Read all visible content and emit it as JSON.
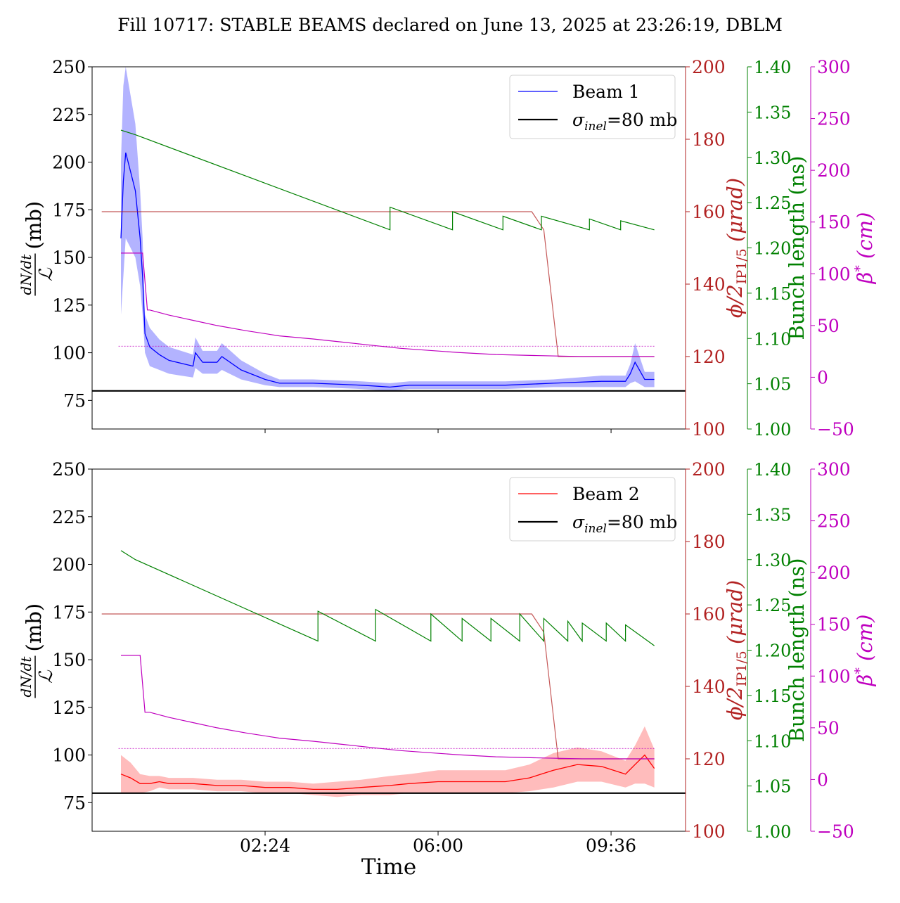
{
  "title": "Fill 10717: STABLE BEAMS declared on June 13, 2025 at 23:26:19, DBLM",
  "colors": {
    "beam1": "#0000ff",
    "beam1_band": "#8080ff",
    "beam2": "#ff0000",
    "beam2_band": "#ff9090",
    "crossing_angle": "#b22222",
    "bunch_length": "#008000",
    "beta_star": "#bf00bf",
    "sigma": "#000000"
  },
  "shared_x": {
    "label": "Time",
    "unit": "hours after 23:26",
    "ticks": [
      {
        "value": 3.0,
        "label": "02:24"
      },
      {
        "value": 6.6,
        "label": "06:00"
      },
      {
        "value": 10.2,
        "label": "09:36"
      }
    ],
    "range": [
      -0.6,
      11.75
    ]
  },
  "axes": {
    "left": {
      "label_fraction": "dN/dt / ℒ",
      "label_unit": "(mb)",
      "range": [
        60,
        250
      ],
      "ticks": [
        "75",
        "100",
        "125",
        "150",
        "175",
        "200",
        "225",
        "250"
      ]
    },
    "right1": {
      "label": "ϕ/2",
      "label_sub": "IP1/5",
      "label_unit": "(μrad)",
      "range": [
        100,
        200
      ],
      "ticks": [
        "100",
        "120",
        "140",
        "160",
        "180",
        "200"
      ]
    },
    "right2": {
      "label": "Bunch length (ns)",
      "range": [
        1.0,
        1.4
      ],
      "ticks": [
        "1.00",
        "1.05",
        "1.10",
        "1.15",
        "1.20",
        "1.25",
        "1.30",
        "1.35",
        "1.40"
      ]
    },
    "right3": {
      "label": "β",
      "label_sup": "*",
      "label_unit": "(cm)",
      "range": [
        -50,
        300
      ],
      "ticks": [
        "−50",
        "0",
        "50",
        "100",
        "150",
        "200",
        "250",
        "300"
      ]
    }
  },
  "chart_data": [
    {
      "type": "line",
      "legend": {
        "position": "top-right",
        "entries": [
          {
            "label": "Beam 1"
          },
          {
            "label_main": "σ",
            "label_sub": "inel",
            "label_rest": "=80 mb"
          }
        ]
      },
      "series": [
        {
          "name": "Beam 1",
          "axis": "left",
          "x": [
            0.0,
            0.05,
            0.1,
            0.2,
            0.3,
            0.4,
            0.45,
            0.5,
            0.6,
            0.8,
            1.0,
            1.5,
            1.55,
            1.7,
            2.0,
            2.1,
            2.5,
            3.0,
            3.3,
            4.0,
            5.0,
            5.6,
            6.0,
            6.6,
            7.0,
            8.0,
            9.0,
            10.0,
            10.5,
            10.6,
            10.7,
            10.9,
            11.1
          ],
          "y": [
            160,
            190,
            205,
            195,
            185,
            160,
            140,
            110,
            103,
            99,
            96,
            93,
            100,
            95,
            95,
            98,
            91,
            86,
            84,
            84,
            83,
            82,
            83,
            83,
            83,
            83,
            84,
            85,
            85,
            89,
            95,
            86,
            86
          ],
          "band_half": [
            40,
            50,
            45,
            40,
            35,
            25,
            20,
            10,
            10,
            8,
            7,
            6,
            8,
            6,
            6,
            7,
            5,
            3,
            2,
            2,
            2,
            2,
            2,
            2,
            2,
            2,
            2,
            3,
            3,
            5,
            10,
            4,
            4
          ]
        },
        {
          "name": "σinel=80 mb",
          "axis": "left",
          "constant": 80
        },
        {
          "name": "crossing angle",
          "axis": "right1",
          "x": [
            -0.4,
            0.0,
            0.0,
            8.55,
            8.55,
            8.8,
            9.1,
            11.1
          ],
          "y": [
            160,
            160,
            160,
            160,
            160,
            155,
            120,
            120
          ]
        },
        {
          "name": "bunch length",
          "axis": "right2",
          "x": [
            0.0,
            0.3,
            5.6,
            5.6,
            6.9,
            6.9,
            7.95,
            7.95,
            8.75,
            8.75,
            9.75,
            9.75,
            10.4,
            10.4,
            11.1
          ],
          "y": [
            1.33,
            1.325,
            1.22,
            1.245,
            1.22,
            1.24,
            1.22,
            1.235,
            1.22,
            1.235,
            1.22,
            1.232,
            1.22,
            1.23,
            1.22
          ]
        },
        {
          "name": "beta star",
          "axis": "right3",
          "x": [
            0.0,
            0.4,
            0.45,
            0.55,
            0.6,
            1.0,
            1.5,
            2.0,
            2.6,
            3.3,
            4.0,
            4.6,
            5.2,
            5.8,
            6.4,
            7.0,
            7.8,
            8.6,
            9.6,
            11.1
          ],
          "y": [
            120,
            120,
            120,
            65,
            65,
            60,
            55,
            50,
            45,
            40,
            37,
            34,
            31,
            28,
            26,
            24,
            22,
            21,
            20,
            20
          ]
        },
        {
          "name": "beta reference",
          "axis": "right3",
          "constant": 30
        }
      ]
    },
    {
      "type": "line",
      "legend": {
        "position": "top-right",
        "entries": [
          {
            "label": "Beam 2"
          },
          {
            "label_main": "σ",
            "label_sub": "inel",
            "label_rest": "=80 mb"
          }
        ]
      },
      "series": [
        {
          "name": "Beam 2",
          "axis": "left",
          "x": [
            0.0,
            0.2,
            0.4,
            0.6,
            0.8,
            1.0,
            1.5,
            2.0,
            2.5,
            3.0,
            3.5,
            4.0,
            4.5,
            5.0,
            5.6,
            6.0,
            6.6,
            7.0,
            7.5,
            8.0,
            8.5,
            9.0,
            9.5,
            10.0,
            10.5,
            10.7,
            10.9,
            11.1
          ],
          "y": [
            90,
            88,
            85,
            85,
            86,
            85,
            85,
            84,
            84,
            83,
            83,
            82,
            82,
            83,
            84,
            85,
            86,
            86,
            86,
            86,
            88,
            92,
            95,
            94,
            90,
            95,
            100,
            93
          ],
          "band_half": [
            10,
            8,
            5,
            4,
            3,
            3,
            3,
            3,
            3,
            3,
            3,
            3,
            4,
            4,
            5,
            5,
            6,
            6,
            6,
            6,
            7,
            9,
            9,
            8,
            7,
            10,
            15,
            10
          ]
        },
        {
          "name": "σinel=80 mb",
          "axis": "left",
          "constant": 80
        },
        {
          "name": "crossing angle",
          "axis": "right1",
          "x": [
            -0.4,
            0.0,
            0.0,
            8.55,
            8.55,
            8.8,
            9.1,
            11.1
          ],
          "y": [
            160,
            160,
            160,
            160,
            160,
            155,
            120,
            120
          ]
        },
        {
          "name": "bunch length",
          "axis": "right2",
          "x": [
            0.0,
            0.3,
            4.1,
            4.1,
            5.3,
            5.3,
            6.45,
            6.45,
            7.1,
            7.1,
            7.7,
            7.7,
            8.3,
            8.3,
            8.8,
            8.8,
            9.3,
            9.3,
            9.6,
            9.6,
            10.1,
            10.1,
            10.5,
            10.5,
            11.1
          ],
          "y": [
            1.31,
            1.3,
            1.21,
            1.243,
            1.21,
            1.245,
            1.21,
            1.24,
            1.21,
            1.235,
            1.21,
            1.235,
            1.21,
            1.24,
            1.21,
            1.235,
            1.21,
            1.232,
            1.21,
            1.23,
            1.21,
            1.23,
            1.21,
            1.228,
            1.205
          ]
        },
        {
          "name": "beta star",
          "axis": "right3",
          "x": [
            0.0,
            0.4,
            0.5,
            0.6,
            1.0,
            1.5,
            2.0,
            2.6,
            3.3,
            4.0,
            4.6,
            5.2,
            5.8,
            6.4,
            7.0,
            7.8,
            8.6,
            9.6,
            11.1
          ],
          "y": [
            120,
            120,
            65,
            65,
            60,
            55,
            50,
            45,
            40,
            37,
            34,
            31,
            28,
            26,
            24,
            22,
            21,
            20,
            20
          ]
        },
        {
          "name": "beta reference",
          "axis": "right3",
          "constant": 30
        }
      ]
    }
  ]
}
